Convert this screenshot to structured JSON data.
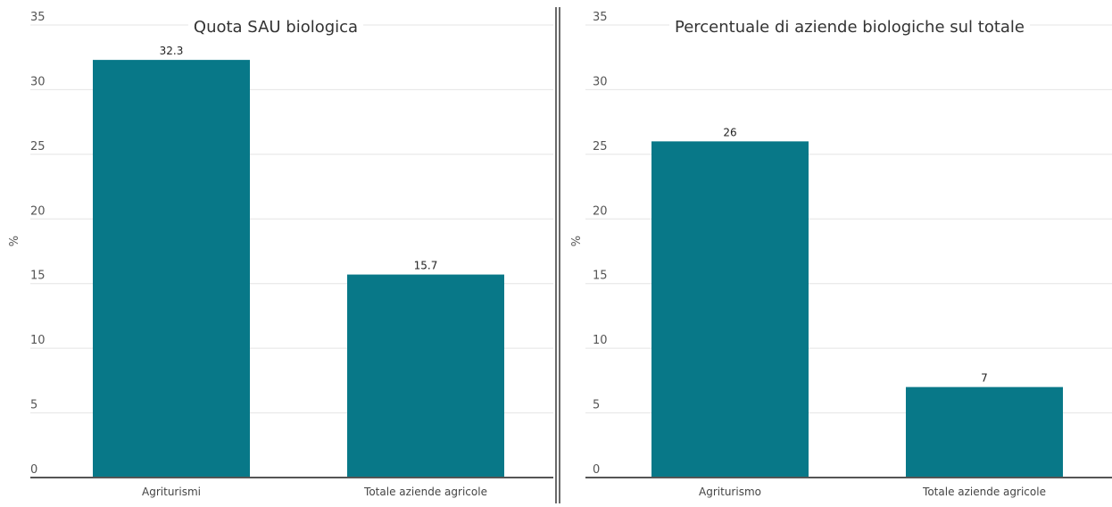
{
  "colors": {
    "bar": "#087888",
    "grid": "#e4e4e4",
    "axis": "#555555",
    "divider": "#6a6a6a"
  },
  "chart_data": [
    {
      "type": "bar",
      "title": "Quota SAU biologica",
      "ylabel": "%",
      "xlabel": "",
      "categories": [
        "Agriturismi",
        "Totale aziende agricole"
      ],
      "values": [
        32.3,
        15.7
      ],
      "data_labels": [
        "32.3",
        "15.7"
      ],
      "ylim": [
        0,
        35
      ],
      "yticks": [
        0,
        5,
        10,
        15,
        20,
        25,
        30,
        35
      ],
      "grid": true,
      "legend": "none"
    },
    {
      "type": "bar",
      "title": "Percentuale di aziende biologiche sul totale",
      "ylabel": "%",
      "xlabel": "",
      "categories": [
        "Agriturismo",
        "Totale aziende agricole"
      ],
      "values": [
        26,
        7
      ],
      "data_labels": [
        "26",
        "7"
      ],
      "ylim": [
        0,
        35
      ],
      "yticks": [
        0,
        5,
        10,
        15,
        20,
        25,
        30,
        35
      ],
      "grid": true,
      "legend": "none"
    }
  ]
}
